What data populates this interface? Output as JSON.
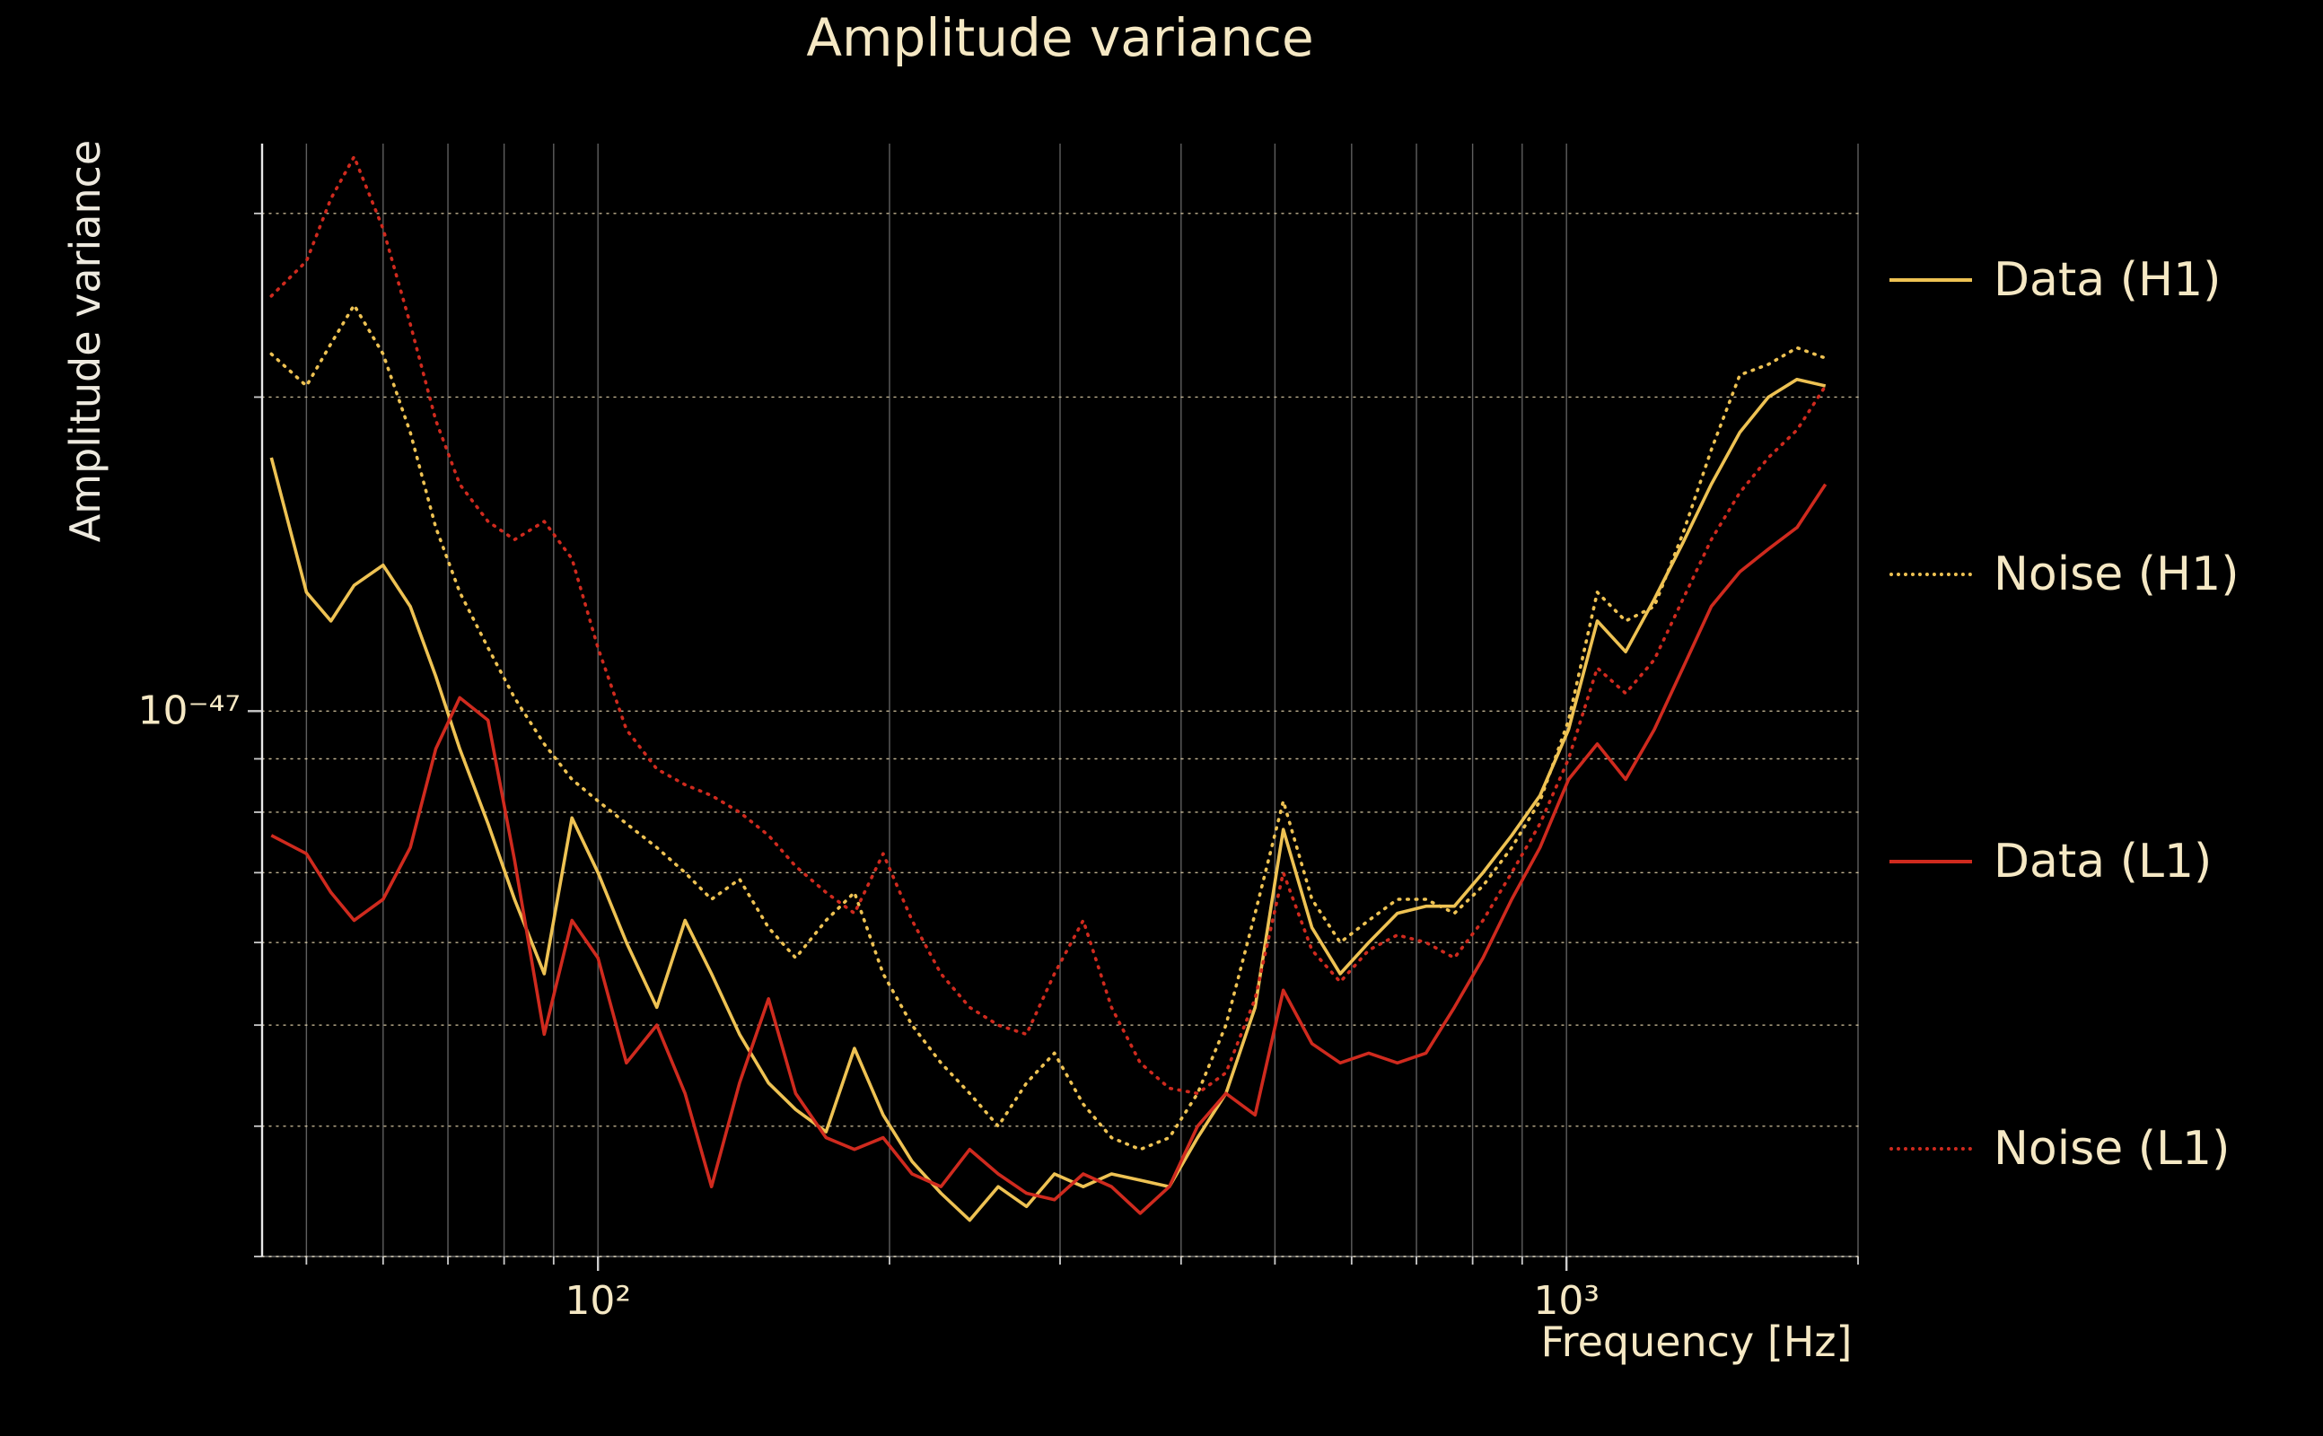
{
  "background_color": "#000000",
  "text_color": "#f5e8c4",
  "chart_data": {
    "type": "line",
    "title": "Amplitude variance",
    "xlabel": "Frequency [Hz]",
    "ylabel": "Amplitude variance",
    "xscale": "log",
    "yscale": "log",
    "xlim": [
      45,
      2000
    ],
    "ylim": [
      3e-48,
      3.5e-47
    ],
    "grid": true,
    "legend_position": "right",
    "x_ticks": [
      {
        "value": 100,
        "label": "10²"
      },
      {
        "value": 1000,
        "label": "10³"
      }
    ],
    "y_ticks": [
      {
        "value": 1e-47,
        "label": "10⁻⁴⁷"
      }
    ],
    "values_scale": 1e-48,
    "x": [
      46,
      50,
      53,
      56,
      60,
      64,
      68,
      72,
      77,
      82,
      88,
      94,
      100,
      107,
      115,
      123,
      131,
      140,
      150,
      160,
      172,
      184,
      197,
      211,
      226,
      242,
      259,
      277,
      296,
      317,
      339,
      363,
      389,
      416,
      445,
      477,
      510,
      546,
      584,
      625,
      669,
      716,
      766,
      820,
      878,
      939,
      1005,
      1076,
      1151,
      1232,
      1319,
      1411,
      1510,
      1616,
      1730,
      1851
    ],
    "series": [
      {
        "name": "Data (H1)",
        "color": "#eec253",
        "style": "solid",
        "values": [
          17.5,
          13.0,
          12.2,
          13.2,
          13.8,
          12.6,
          10.8,
          9.2,
          7.8,
          6.6,
          5.6,
          7.9,
          7.0,
          6.0,
          5.2,
          6.3,
          5.6,
          4.9,
          4.4,
          4.15,
          3.95,
          4.75,
          4.1,
          3.7,
          3.45,
          3.25,
          3.5,
          3.35,
          3.6,
          3.5,
          3.6,
          3.55,
          3.5,
          3.9,
          4.3,
          5.2,
          7.7,
          6.2,
          5.6,
          6.0,
          6.4,
          6.5,
          6.5,
          7.0,
          7.6,
          8.3,
          9.6,
          12.2,
          11.4,
          12.8,
          14.5,
          16.5,
          18.5,
          20.0,
          20.8,
          20.5
        ]
      },
      {
        "name": "Noise (H1)",
        "color": "#eec253",
        "style": "dotted",
        "values": [
          22.0,
          20.5,
          22.5,
          24.5,
          22.0,
          18.5,
          15.0,
          13.0,
          11.5,
          10.3,
          9.3,
          8.6,
          8.2,
          7.8,
          7.4,
          7.0,
          6.6,
          6.9,
          6.2,
          5.8,
          6.3,
          6.7,
          5.6,
          5.0,
          4.6,
          4.3,
          4.0,
          4.4,
          4.7,
          4.2,
          3.9,
          3.8,
          3.9,
          4.3,
          5.0,
          6.4,
          8.2,
          6.6,
          6.0,
          6.3,
          6.6,
          6.6,
          6.4,
          6.8,
          7.4,
          8.2,
          9.8,
          13.0,
          12.2,
          12.6,
          14.8,
          17.8,
          21.0,
          21.5,
          22.3,
          21.8
        ]
      },
      {
        "name": "Data (L1)",
        "color": "#cf2a1e",
        "style": "solid",
        "values": [
          7.6,
          7.3,
          6.7,
          6.3,
          6.6,
          7.4,
          9.2,
          10.3,
          9.8,
          7.2,
          4.9,
          6.3,
          5.8,
          4.6,
          5.0,
          4.3,
          3.5,
          4.4,
          5.3,
          4.3,
          3.9,
          3.8,
          3.9,
          3.6,
          3.5,
          3.8,
          3.6,
          3.45,
          3.4,
          3.6,
          3.5,
          3.3,
          3.5,
          4.0,
          4.3,
          4.1,
          5.4,
          4.8,
          4.6,
          4.7,
          4.6,
          4.7,
          5.2,
          5.8,
          6.6,
          7.4,
          8.6,
          9.3,
          8.6,
          9.6,
          11.0,
          12.6,
          13.6,
          14.3,
          15.0,
          16.5
        ]
      },
      {
        "name": "Noise (L1)",
        "color": "#cf2a1e",
        "style": "dotted",
        "values": [
          25.0,
          27.0,
          31.0,
          34.0,
          29.0,
          23.5,
          19.0,
          16.5,
          15.2,
          14.6,
          15.2,
          14.0,
          11.5,
          9.6,
          8.8,
          8.5,
          8.3,
          8.0,
          7.6,
          7.1,
          6.7,
          6.4,
          7.3,
          6.3,
          5.6,
          5.2,
          5.0,
          4.9,
          5.6,
          6.3,
          5.2,
          4.6,
          4.35,
          4.3,
          4.5,
          5.3,
          7.0,
          5.9,
          5.5,
          5.9,
          6.1,
          6.0,
          5.8,
          6.3,
          7.0,
          7.8,
          9.0,
          11.0,
          10.4,
          11.2,
          12.8,
          14.6,
          16.2,
          17.5,
          18.6,
          20.5
        ]
      }
    ]
  }
}
